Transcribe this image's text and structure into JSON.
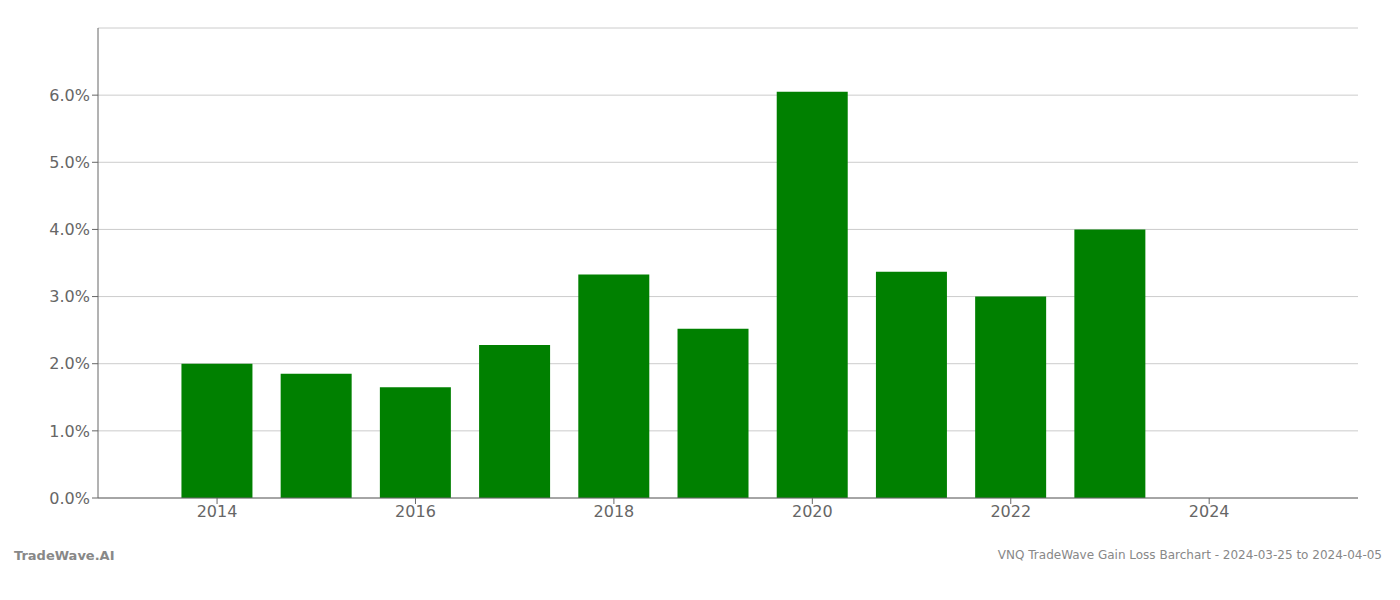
{
  "chart_data": {
    "type": "bar",
    "x": [
      2014,
      2015,
      2016,
      2017,
      2018,
      2019,
      2020,
      2021,
      2022,
      2023
    ],
    "values": [
      0.02,
      0.0185,
      0.0165,
      0.0228,
      0.0333,
      0.0252,
      0.0605,
      0.0337,
      0.03,
      0.04
    ],
    "color": "#008000",
    "xlim": [
      2012.8,
      2025.5
    ],
    "xticks": [
      2014,
      2016,
      2018,
      2020,
      2022,
      2024
    ],
    "ylim": [
      0.0,
      0.07
    ],
    "yticks": [
      {
        "value": 0.0,
        "label": "0.0%"
      },
      {
        "value": 0.01,
        "label": "1.0%"
      },
      {
        "value": 0.02,
        "label": "2.0%"
      },
      {
        "value": 0.03,
        "label": "3.0%"
      },
      {
        "value": 0.04,
        "label": "4.0%"
      },
      {
        "value": 0.05,
        "label": "5.0%"
      },
      {
        "value": 0.06,
        "label": "6.0%"
      }
    ],
    "grid": true,
    "annotations": [
      "TradeWave.AI",
      "VNQ TradeWave Gain Loss Barchart - 2024-03-25 to 2024-04-05"
    ]
  }
}
